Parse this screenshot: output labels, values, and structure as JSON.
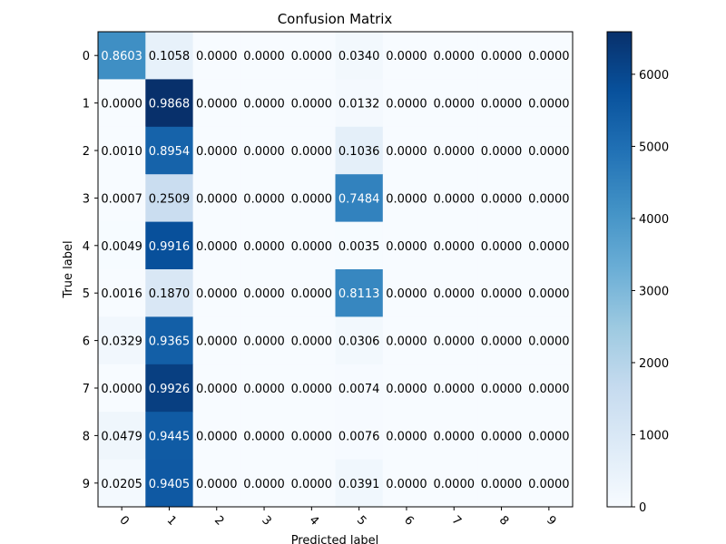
{
  "chart_data": {
    "type": "heatmap",
    "title": "Confusion Matrix",
    "xlabel": "Predicted label",
    "ylabel": "True label",
    "x_categories": [
      "0",
      "1",
      "2",
      "3",
      "4",
      "5",
      "6",
      "7",
      "8",
      "9"
    ],
    "y_categories": [
      "0",
      "1",
      "2",
      "3",
      "4",
      "5",
      "6",
      "7",
      "8",
      "9"
    ],
    "colormap": "Blues",
    "colormap_colors": [
      "#f7fbff",
      "#deebf7",
      "#c6dbef",
      "#9ecae1",
      "#6baed6",
      "#4292c6",
      "#2171b5",
      "#08519c",
      "#08306b"
    ],
    "colorbar": {
      "range": [
        0,
        6590
      ],
      "ticks": [
        0,
        1000,
        2000,
        3000,
        4000,
        5000,
        6000
      ],
      "tick_labels": [
        "0",
        "1000",
        "2000",
        "3000",
        "4000",
        "5000",
        "6000"
      ]
    },
    "cell_labels": [
      [
        "0.8603",
        "0.1058",
        "0.0000",
        "0.0000",
        "0.0000",
        "0.0340",
        "0.0000",
        "0.0000",
        "0.0000",
        "0.0000"
      ],
      [
        "0.0000",
        "0.9868",
        "0.0000",
        "0.0000",
        "0.0000",
        "0.0132",
        "0.0000",
        "0.0000",
        "0.0000",
        "0.0000"
      ],
      [
        "0.0010",
        "0.8954",
        "0.0000",
        "0.0000",
        "0.0000",
        "0.1036",
        "0.0000",
        "0.0000",
        "0.0000",
        "0.0000"
      ],
      [
        "0.0007",
        "0.2509",
        "0.0000",
        "0.0000",
        "0.0000",
        "0.7484",
        "0.0000",
        "0.0000",
        "0.0000",
        "0.0000"
      ],
      [
        "0.0049",
        "0.9916",
        "0.0000",
        "0.0000",
        "0.0000",
        "0.0035",
        "0.0000",
        "0.0000",
        "0.0000",
        "0.0000"
      ],
      [
        "0.0016",
        "0.1870",
        "0.0000",
        "0.0000",
        "0.0000",
        "0.8113",
        "0.0000",
        "0.0000",
        "0.0000",
        "0.0000"
      ],
      [
        "0.0329",
        "0.9365",
        "0.0000",
        "0.0000",
        "0.0000",
        "0.0306",
        "0.0000",
        "0.0000",
        "0.0000",
        "0.0000"
      ],
      [
        "0.0000",
        "0.9926",
        "0.0000",
        "0.0000",
        "0.0000",
        "0.0074",
        "0.0000",
        "0.0000",
        "0.0000",
        "0.0000"
      ],
      [
        "0.0479",
        "0.9445",
        "0.0000",
        "0.0000",
        "0.0000",
        "0.0076",
        "0.0000",
        "0.0000",
        "0.0000",
        "0.0000"
      ],
      [
        "0.0205",
        "0.9405",
        "0.0000",
        "0.0000",
        "0.0000",
        "0.0391",
        "0.0000",
        "0.0000",
        "0.0000",
        "0.0000"
      ]
    ],
    "counts": [
      [
        4200,
        520,
        0,
        0,
        0,
        165,
        0,
        0,
        0,
        0
      ],
      [
        0,
        6590,
        0,
        0,
        0,
        90,
        0,
        0,
        0,
        0
      ],
      [
        5,
        5300,
        0,
        0,
        0,
        610,
        0,
        0,
        0,
        0
      ],
      [
        4,
        1520,
        0,
        0,
        0,
        4530,
        0,
        0,
        0,
        0
      ],
      [
        25,
        5790,
        0,
        0,
        0,
        20,
        0,
        0,
        0,
        0
      ],
      [
        9,
        1010,
        0,
        0,
        0,
        4400,
        0,
        0,
        0,
        0
      ],
      [
        190,
        5400,
        0,
        0,
        0,
        175,
        0,
        0,
        0,
        0
      ],
      [
        0,
        6220,
        0,
        0,
        0,
        46,
        0,
        0,
        0,
        0
      ],
      [
        280,
        5510,
        0,
        0,
        0,
        44,
        0,
        0,
        0,
        0
      ],
      [
        120,
        5550,
        0,
        0,
        0,
        230,
        0,
        0,
        0,
        0
      ]
    ]
  }
}
